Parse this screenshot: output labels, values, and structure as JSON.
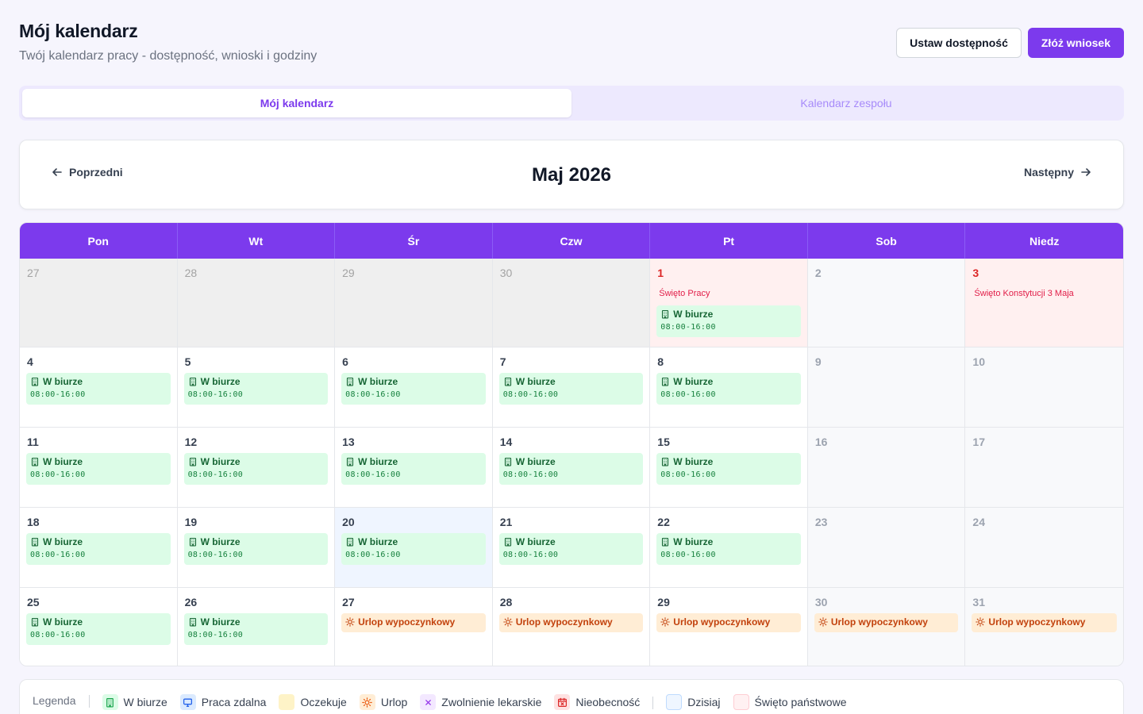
{
  "header": {
    "title": "Mój kalendarz",
    "subtitle": "Twój kalendarz pracy - dostępność, wnioski i godziny",
    "set_availability_label": "Ustaw dostępność",
    "submit_request_label": "Złóż wniosek"
  },
  "tabs": [
    {
      "label": "Mój kalendarz",
      "active": true
    },
    {
      "label": "Kalendarz zespołu",
      "active": false
    }
  ],
  "nav": {
    "prev_label": "Poprzedni",
    "month_title": "Maj 2026",
    "next_label": "Następny"
  },
  "weekdays": [
    "Pon",
    "Wt",
    "Śr",
    "Czw",
    "Pt",
    "Sob",
    "Niedz"
  ],
  "event_labels": {
    "office": "W biurze",
    "office_time": "08:00-16:00",
    "vacation": "Urlop wypoczynkowy"
  },
  "weeks": [
    [
      {
        "num": "27",
        "kind": "other"
      },
      {
        "num": "28",
        "kind": "other"
      },
      {
        "num": "29",
        "kind": "other"
      },
      {
        "num": "30",
        "kind": "other"
      },
      {
        "num": "1",
        "kind": "holiday",
        "holiday": "Święto Pracy",
        "event": "office"
      },
      {
        "num": "2",
        "kind": "weekend"
      },
      {
        "num": "3",
        "kind": "holiday",
        "holiday": "Święto Konstytucji 3 Maja"
      }
    ],
    [
      {
        "num": "4",
        "kind": "normal",
        "event": "office"
      },
      {
        "num": "5",
        "kind": "normal",
        "event": "office"
      },
      {
        "num": "6",
        "kind": "normal",
        "event": "office"
      },
      {
        "num": "7",
        "kind": "normal",
        "event": "office"
      },
      {
        "num": "8",
        "kind": "normal",
        "event": "office"
      },
      {
        "num": "9",
        "kind": "weekend"
      },
      {
        "num": "10",
        "kind": "weekend"
      }
    ],
    [
      {
        "num": "11",
        "kind": "normal",
        "event": "office"
      },
      {
        "num": "12",
        "kind": "normal",
        "event": "office"
      },
      {
        "num": "13",
        "kind": "normal",
        "event": "office"
      },
      {
        "num": "14",
        "kind": "normal",
        "event": "office"
      },
      {
        "num": "15",
        "kind": "normal",
        "event": "office"
      },
      {
        "num": "16",
        "kind": "weekend"
      },
      {
        "num": "17",
        "kind": "weekend"
      }
    ],
    [
      {
        "num": "18",
        "kind": "normal",
        "event": "office"
      },
      {
        "num": "19",
        "kind": "normal",
        "event": "office"
      },
      {
        "num": "20",
        "kind": "today",
        "event": "office"
      },
      {
        "num": "21",
        "kind": "normal",
        "event": "office"
      },
      {
        "num": "22",
        "kind": "normal",
        "event": "office"
      },
      {
        "num": "23",
        "kind": "weekend"
      },
      {
        "num": "24",
        "kind": "weekend"
      }
    ],
    [
      {
        "num": "25",
        "kind": "normal",
        "event": "office"
      },
      {
        "num": "26",
        "kind": "normal",
        "event": "office"
      },
      {
        "num": "27",
        "kind": "normal",
        "event": "vacation"
      },
      {
        "num": "28",
        "kind": "normal",
        "event": "vacation"
      },
      {
        "num": "29",
        "kind": "normal",
        "event": "vacation"
      },
      {
        "num": "30",
        "kind": "weekend",
        "event": "vacation"
      },
      {
        "num": "31",
        "kind": "weekend",
        "event": "vacation"
      }
    ]
  ],
  "legend": {
    "title": "Legenda",
    "items": [
      {
        "label": "W biurze",
        "icon": "building-icon",
        "style": "office"
      },
      {
        "label": "Praca zdalna",
        "icon": "monitor-icon",
        "style": "remote"
      },
      {
        "label": "Oczekuje",
        "icon": "none",
        "style": "pending"
      },
      {
        "label": "Urlop",
        "icon": "sun-icon",
        "style": "vac"
      },
      {
        "label": "Zwolnienie lekarskie",
        "icon": "cross-icon",
        "style": "sick"
      },
      {
        "label": "Nieobecność",
        "icon": "calendar-x-icon",
        "style": "absence"
      },
      {
        "label": "Dzisiaj",
        "icon": "none",
        "style": "today"
      },
      {
        "label": "Święto państwowe",
        "icon": "none",
        "style": "holiday"
      }
    ]
  },
  "colors": {
    "accent": "#7c3aed",
    "office_bg": "#dcfce7",
    "office_text": "#166534",
    "vacation_bg": "#ffedd5",
    "vacation_text": "#c2410c",
    "holiday_bg": "#fff0f0",
    "holiday_text": "#e11d48",
    "today_bg": "#eff5ff"
  }
}
